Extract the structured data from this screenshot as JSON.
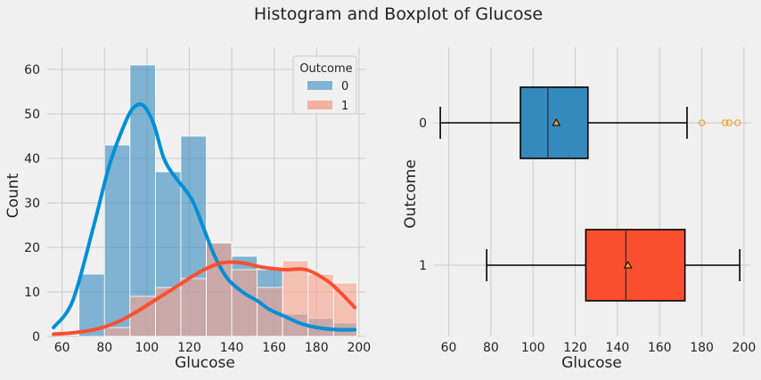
{
  "suptitle": "Histogram and Boxplot of Glucose",
  "colors": {
    "outcome0": "#348ABD",
    "outcome0_kde": "#008fd5",
    "outcome1": "#fc4f30",
    "outcome1_bar": "#f8a08c",
    "grid": "#cbcbcb",
    "outlier": "#f0a030"
  },
  "chart_data": [
    {
      "type": "bar",
      "subtype": "histogram-with-kde",
      "xlabel": "Glucose",
      "ylabel": "Count",
      "xlim": [
        53,
        203
      ],
      "ylim": [
        0,
        65
      ],
      "xticks": [
        60,
        80,
        100,
        120,
        140,
        160,
        180,
        200
      ],
      "yticks": [
        0,
        10,
        20,
        30,
        40,
        50,
        60
      ],
      "grid": true,
      "legend": {
        "title": "Outcome",
        "placement": "top-right",
        "entries": [
          "0",
          "1"
        ]
      },
      "bin_edges": [
        68,
        80,
        92,
        104,
        116,
        128,
        140,
        152,
        164,
        176,
        188,
        199
      ],
      "series": [
        {
          "name": "0",
          "counts": [
            14,
            43,
            61,
            37,
            45,
            21,
            18,
            15,
            5,
            4,
            3
          ],
          "kde": {
            "x": [
              56,
              65,
              75,
              82,
              88,
              93,
              98,
              103,
              108,
              113,
              118,
              122,
              127,
              132,
              138,
              145,
              152,
              158,
              165,
              172,
              180,
              190,
              198
            ],
            "y": [
              2,
              8,
              25,
              38,
              46,
              51,
              52,
              48,
              40,
              36,
              33,
              30,
              24,
              18,
              13,
              10,
              8,
              6,
              4.5,
              3,
              2,
              1.5,
              1.5
            ]
          }
        },
        {
          "name": "1",
          "counts": [
            0,
            2,
            9,
            11,
            13,
            21,
            15,
            11,
            17,
            14,
            12
          ],
          "kde": {
            "x": [
              56,
              65,
              75,
              85,
              95,
              105,
              115,
              125,
              135,
              145,
              155,
              165,
              175,
              185,
              192,
              198
            ],
            "y": [
              0.5,
              0.8,
              1.5,
              3,
              5.5,
              8.5,
              11.5,
              14.5,
              16.5,
              16.5,
              15.5,
              15,
              15,
              12.5,
              9.5,
              6.5
            ]
          }
        }
      ]
    },
    {
      "type": "boxplot",
      "orientation": "horizontal",
      "xlabel": "Glucose",
      "ylabel": "Outcome",
      "xlim": [
        53,
        203
      ],
      "xticks": [
        60,
        80,
        100,
        120,
        140,
        160,
        180,
        200
      ],
      "grid": true,
      "categories": [
        "0",
        "1"
      ],
      "boxes": [
        {
          "name": "0",
          "whisker_low": 56,
          "q1": 94,
          "median": 107,
          "mean": 111,
          "q3": 126,
          "whisker_high": 173,
          "outliers": [
            180,
            191,
            193,
            197
          ]
        },
        {
          "name": "1",
          "whisker_low": 78,
          "q1": 125,
          "median": 144,
          "mean": 145,
          "q3": 172,
          "whisker_high": 198,
          "outliers": []
        }
      ]
    }
  ]
}
